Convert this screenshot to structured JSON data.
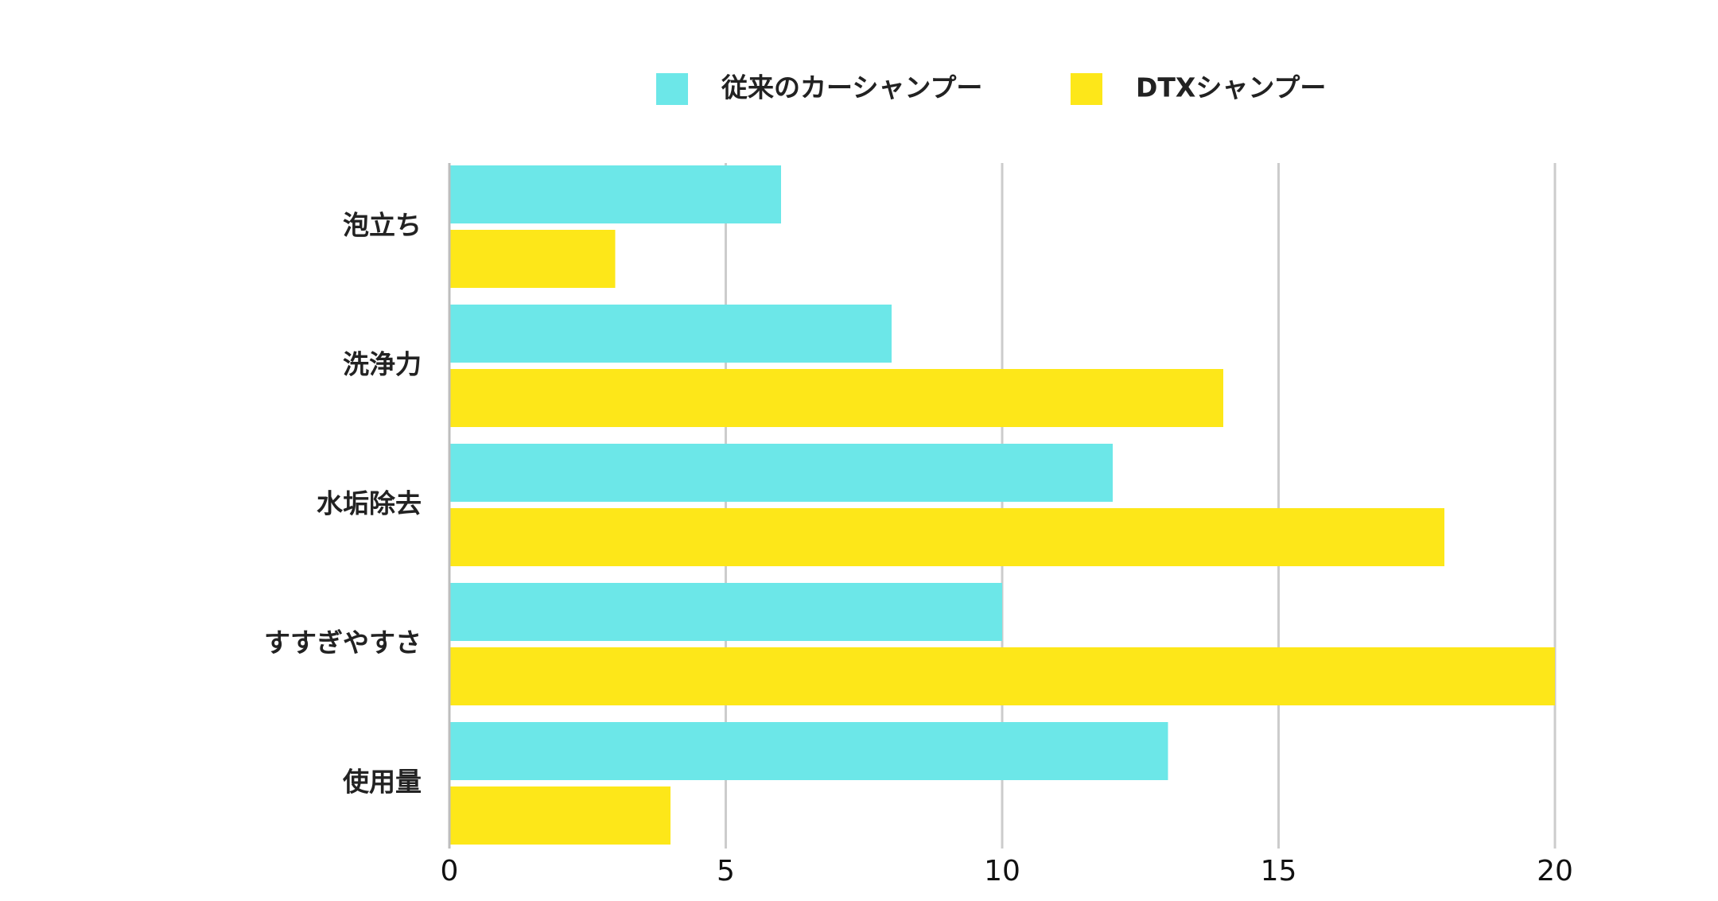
{
  "chart_data": {
    "type": "bar",
    "orientation": "horizontal",
    "categories": [
      "泡立ち",
      "洗浄力",
      "水垢除去",
      "すすぎやすさ",
      "使用量"
    ],
    "series": [
      {
        "name": "従来のカーシャンプー",
        "color": "#6ce7e8",
        "values": [
          6,
          8,
          12,
          10,
          13
        ]
      },
      {
        "name": "DTXシャンプー",
        "color": "#fde719",
        "values": [
          3,
          14,
          18,
          20,
          4
        ]
      }
    ],
    "xlim": [
      0,
      20
    ],
    "xticks": [
      "0",
      "5",
      "10",
      "15",
      "20"
    ],
    "grid": "vertical",
    "legend": "top-center",
    "title": "",
    "xlabel": "",
    "ylabel": ""
  }
}
